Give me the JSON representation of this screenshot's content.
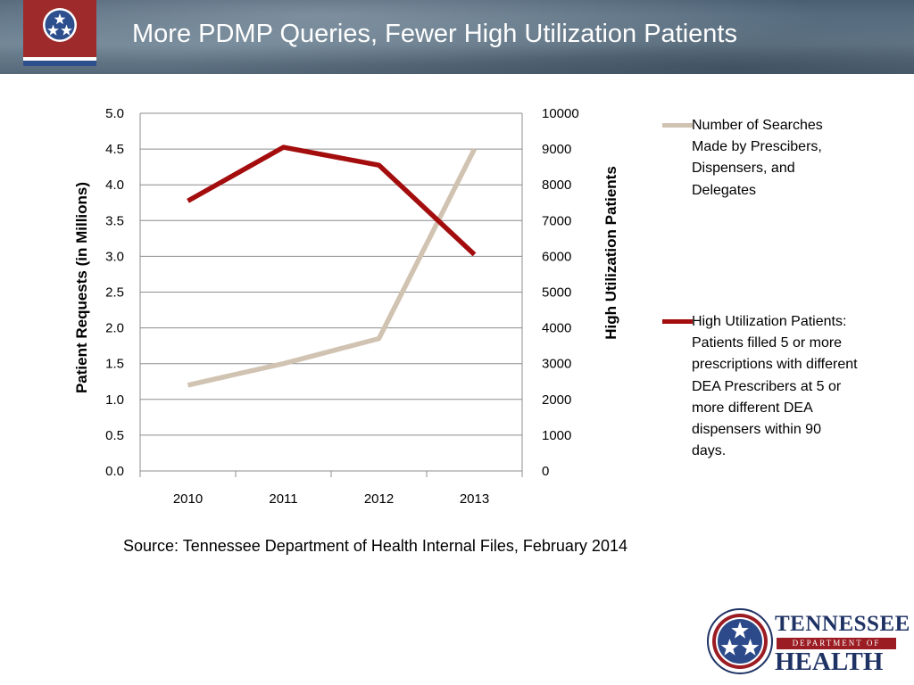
{
  "slide": {
    "title": "More PDMP Queries, Fewer High Utilization Patients",
    "source": "Source: Tennessee Department of Health Internal Files, February 2014"
  },
  "logo": {
    "line1": "TENNESSEE",
    "line2": "DEPARTMENT OF",
    "line3": "HEALTH"
  },
  "colors": {
    "searches": "#d1c3b1",
    "high_utilization": "#a30d0d",
    "grid": "#8c8c8c"
  },
  "chart_data": {
    "type": "line",
    "categories": [
      "2010",
      "2011",
      "2012",
      "2013"
    ],
    "yleft": {
      "label": "Patient Requests (in Millions)",
      "ylim": [
        0,
        5
      ],
      "ticks": [
        "0.0",
        "0.5",
        "1.0",
        "1.5",
        "2.0",
        "2.5",
        "3.0",
        "3.5",
        "4.0",
        "4.5",
        "5.0"
      ]
    },
    "yright": {
      "label": "High Utilization Patients",
      "ylim": [
        0,
        10000
      ],
      "ticks": [
        "0",
        "1000",
        "2000",
        "3000",
        "4000",
        "5000",
        "6000",
        "7000",
        "8000",
        "9000",
        "10000"
      ]
    },
    "grid": true,
    "legend_position": "right",
    "series": [
      {
        "name": "Number of Searches Made by Prescibers, Dispensers, and Delegates",
        "axis": "left",
        "values": [
          1.2,
          1.5,
          1.85,
          4.5
        ]
      },
      {
        "name": "High Utilization Patients: Patients filled 5 or more prescriptions with different DEA Prescribers at 5 or more different DEA dispensers within 90 days.",
        "axis": "right",
        "values": [
          7550,
          9050,
          8550,
          6050
        ]
      }
    ]
  }
}
